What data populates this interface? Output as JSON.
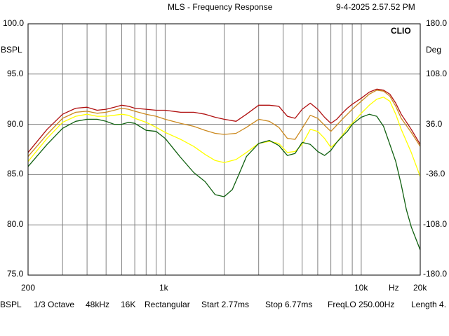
{
  "window": {
    "title": "MLS - Frequency Response",
    "timestamp": "9-4-2025 2.57.52 PM"
  },
  "brand": "CLIO",
  "left_axis": {
    "unit": "BSPL",
    "ticks": [
      "100.0",
      "95.0",
      "90.0",
      "85.0",
      "80.0",
      "75.0"
    ]
  },
  "right_axis": {
    "unit": "Deg",
    "ticks": [
      "180.0",
      "108.0",
      "36.0",
      "-36.0",
      "-108.0",
      "-180.0"
    ]
  },
  "x_axis": {
    "ticks": [
      "200",
      "1k",
      "10k",
      "Hz",
      "20k"
    ]
  },
  "status_bar": {
    "unit": "BSPL",
    "smoothing": "1/3 Octave",
    "sample_rate": "48kHz",
    "fft_size": "16K",
    "window": "Rectangular",
    "start": "Start 2.77ms",
    "stop": "Stop 6.77ms",
    "freqlo": "FreqLO 250.00Hz",
    "length": "Length 4."
  },
  "colors": {
    "background": "#ffffff",
    "grid": "#808080",
    "red": "#b01010",
    "orange": "#cc8a20",
    "yellow": "#ffff00",
    "green": "#106010"
  },
  "chart_data": {
    "type": "line",
    "x_scale": "log",
    "xlim": [
      200,
      20000
    ],
    "ylim": [
      75,
      100
    ],
    "y2lim": [
      -180,
      180
    ],
    "grid": true,
    "series": [
      {
        "color": "#b01010",
        "x": [
          200,
          250,
          300,
          350,
          400,
          450,
          500,
          550,
          600,
          650,
          700,
          800,
          900,
          1000,
          1200,
          1400,
          1600,
          1800,
          2000,
          2300,
          2600,
          3000,
          3400,
          3800,
          4200,
          4600,
          5000,
          5500,
          6000,
          6500,
          7000,
          7500,
          8000,
          8500,
          9000,
          10000,
          11000,
          12000,
          13000,
          14000,
          15000,
          16000,
          18000,
          20000
        ],
        "y": [
          87.2,
          89.5,
          91.0,
          91.6,
          91.7,
          91.4,
          91.5,
          91.7,
          91.9,
          91.8,
          91.6,
          91.5,
          91.4,
          91.4,
          91.2,
          91.2,
          91.0,
          90.7,
          90.5,
          90.3,
          91.0,
          91.9,
          91.9,
          91.8,
          90.8,
          90.6,
          91.5,
          92.1,
          91.5,
          90.7,
          90.1,
          90.5,
          91.1,
          91.6,
          92.0,
          92.6,
          93.2,
          93.5,
          93.4,
          93.0,
          92.1,
          91.0,
          89.5,
          88.0
        ]
      },
      {
        "color": "#cc8a20",
        "x": [
          200,
          250,
          300,
          350,
          400,
          450,
          500,
          550,
          600,
          650,
          700,
          800,
          900,
          1000,
          1200,
          1400,
          1600,
          1800,
          2000,
          2300,
          2600,
          3000,
          3400,
          3800,
          4200,
          4600,
          5000,
          5500,
          6000,
          6500,
          7000,
          7500,
          8000,
          8500,
          9000,
          10000,
          11000,
          12000,
          13000,
          14000,
          15000,
          16000,
          18000,
          20000
        ],
        "y": [
          86.8,
          89.0,
          90.6,
          91.2,
          91.3,
          91.1,
          91.2,
          91.4,
          91.6,
          91.5,
          91.3,
          91.0,
          90.8,
          90.5,
          90.1,
          89.8,
          89.4,
          89.1,
          89.0,
          89.1,
          89.7,
          90.5,
          90.3,
          89.7,
          88.6,
          88.5,
          89.6,
          90.9,
          90.6,
          89.9,
          89.3,
          89.9,
          90.5,
          91.0,
          91.5,
          92.3,
          93.0,
          93.4,
          93.3,
          92.8,
          91.8,
          90.6,
          89.2,
          87.8
        ]
      },
      {
        "color": "#ffff00",
        "x": [
          200,
          250,
          300,
          350,
          400,
          450,
          500,
          550,
          600,
          650,
          700,
          800,
          900,
          1000,
          1200,
          1400,
          1600,
          1800,
          2000,
          2300,
          2600,
          3000,
          3400,
          3800,
          4200,
          4600,
          5000,
          5500,
          6000,
          6500,
          7000,
          7500,
          8000,
          8500,
          9000,
          10000,
          11000,
          12000,
          13000,
          14000,
          15000,
          16000,
          18000,
          20000
        ],
        "y": [
          86.3,
          88.6,
          90.2,
          90.8,
          91.0,
          90.8,
          90.8,
          90.9,
          91.0,
          90.9,
          90.6,
          90.2,
          89.7,
          89.2,
          88.5,
          87.8,
          87.0,
          86.4,
          86.2,
          86.5,
          87.2,
          88.1,
          88.3,
          88.1,
          87.2,
          87.3,
          88.0,
          89.5,
          89.3,
          88.6,
          87.7,
          88.2,
          88.9,
          89.6,
          90.1,
          91.1,
          91.9,
          92.5,
          92.7,
          92.3,
          91.0,
          89.5,
          87.2,
          84.8
        ]
      },
      {
        "color": "#106010",
        "x": [
          200,
          250,
          300,
          350,
          400,
          450,
          500,
          550,
          600,
          650,
          700,
          800,
          900,
          1000,
          1200,
          1400,
          1600,
          1800,
          2000,
          2200,
          2400,
          2600,
          3000,
          3400,
          3800,
          4200,
          4600,
          5000,
          5500,
          6000,
          6500,
          7000,
          7500,
          8000,
          8500,
          9000,
          10000,
          11000,
          12000,
          13000,
          14000,
          15000,
          16000,
          17000,
          18000,
          20000
        ],
        "y": [
          85.8,
          88.0,
          89.6,
          90.3,
          90.5,
          90.5,
          90.3,
          90.0,
          90.0,
          90.2,
          90.1,
          89.4,
          89.3,
          88.6,
          86.7,
          85.2,
          84.3,
          83.0,
          82.8,
          83.5,
          85.2,
          86.8,
          88.1,
          88.4,
          87.9,
          86.9,
          87.1,
          88.2,
          88.0,
          87.3,
          86.9,
          87.4,
          88.2,
          88.8,
          89.3,
          90.0,
          90.7,
          91.0,
          90.8,
          89.8,
          88.0,
          86.3,
          84.0,
          81.5,
          79.8,
          77.5
        ]
      }
    ]
  }
}
